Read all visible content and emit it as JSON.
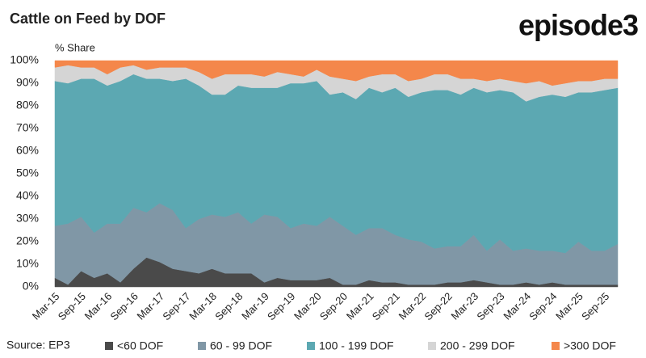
{
  "chart_data": {
    "type": "stacked_area",
    "title": "Cattle on Feed by DOF",
    "logo": "episode3",
    "y_label": "% Share",
    "source": "Source: EP3",
    "categories": [
      "Mar-15",
      null,
      "Sep-15",
      null,
      "Mar-16",
      null,
      "Sep-16",
      null,
      "Mar-17",
      null,
      "Sep-17",
      null,
      "Mar-18",
      null,
      "Sep-18",
      null,
      "Mar-19",
      null,
      "Sep-19",
      null,
      "Mar-20",
      null,
      "Sep-20",
      null,
      "Mar-21",
      null,
      "Sep-21",
      null,
      "Mar-22",
      null,
      "Sep-22",
      null,
      "Mar-23",
      null,
      "Sep-23",
      null,
      "Mar-24",
      null,
      "Sep-24",
      null,
      "Mar-25",
      null,
      "Sep-25",
      null
    ],
    "series": [
      {
        "name": "<60 DOF",
        "color": "#4a4a4a",
        "values": [
          4,
          1,
          7,
          4,
          6,
          2,
          8,
          13,
          11,
          8,
          7,
          6,
          8,
          6,
          6,
          6,
          2,
          4,
          3,
          3,
          3,
          4,
          1,
          1,
          3,
          2,
          2,
          1,
          1,
          1,
          2,
          2,
          3,
          2,
          1,
          1,
          2,
          1,
          2,
          1,
          1,
          1,
          1,
          1
        ]
      },
      {
        "name": "60 - 99 DOF",
        "color": "#8097a6",
        "values": [
          23,
          27,
          24,
          20,
          22,
          26,
          27,
          20,
          26,
          26,
          19,
          24,
          24,
          25,
          27,
          22,
          30,
          27,
          23,
          25,
          24,
          27,
          26,
          22,
          23,
          24,
          21,
          20,
          19,
          16,
          16,
          16,
          20,
          14,
          20,
          15,
          15,
          15,
          14,
          14,
          19,
          15,
          15,
          18
        ]
      },
      {
        "name": "100 - 199 DOF",
        "color": "#5ca8b2",
        "values": [
          64,
          62,
          61,
          68,
          61,
          63,
          59,
          59,
          55,
          57,
          66,
          59,
          53,
          54,
          56,
          60,
          56,
          57,
          64,
          62,
          64,
          54,
          59,
          60,
          62,
          60,
          65,
          63,
          66,
          70,
          69,
          67,
          65,
          70,
          66,
          70,
          65,
          68,
          69,
          69,
          66,
          70,
          71,
          69
        ]
      },
      {
        "name": "200 - 299 DOF",
        "color": "#d5d5d5",
        "values": [
          6,
          8,
          5,
          5,
          5,
          6,
          4,
          4,
          5,
          6,
          5,
          6,
          7,
          9,
          5,
          6,
          5,
          7,
          4,
          3,
          5,
          8,
          6,
          8,
          5,
          8,
          6,
          7,
          6,
          7,
          7,
          7,
          4,
          5,
          5,
          5,
          8,
          7,
          4,
          6,
          5,
          5,
          5,
          4
        ]
      },
      {
        "name": ">300 DOF",
        "color": "#f4874b",
        "values": [
          3,
          2,
          3,
          3,
          6,
          3,
          2,
          4,
          3,
          3,
          3,
          5,
          8,
          6,
          6,
          6,
          7,
          5,
          6,
          7,
          4,
          7,
          8,
          9,
          7,
          6,
          6,
          9,
          8,
          6,
          6,
          8,
          8,
          9,
          8,
          9,
          10,
          9,
          11,
          10,
          9,
          9,
          8,
          8
        ]
      }
    ],
    "ylim": [
      0,
      100
    ],
    "yticks": [
      {
        "value": 0,
        "label": "0%"
      },
      {
        "value": 10,
        "label": "10%"
      },
      {
        "value": 20,
        "label": "20%"
      },
      {
        "value": 30,
        "label": "30%"
      },
      {
        "value": 40,
        "label": "40%"
      },
      {
        "value": 50,
        "label": "50%"
      },
      {
        "value": 60,
        "label": "60%"
      },
      {
        "value": 70,
        "label": "70%"
      },
      {
        "value": 80,
        "label": "80%"
      },
      {
        "value": 90,
        "label": "90%"
      },
      {
        "value": 100,
        "label": "100%"
      }
    ],
    "grid": false,
    "legend": "bottom"
  }
}
